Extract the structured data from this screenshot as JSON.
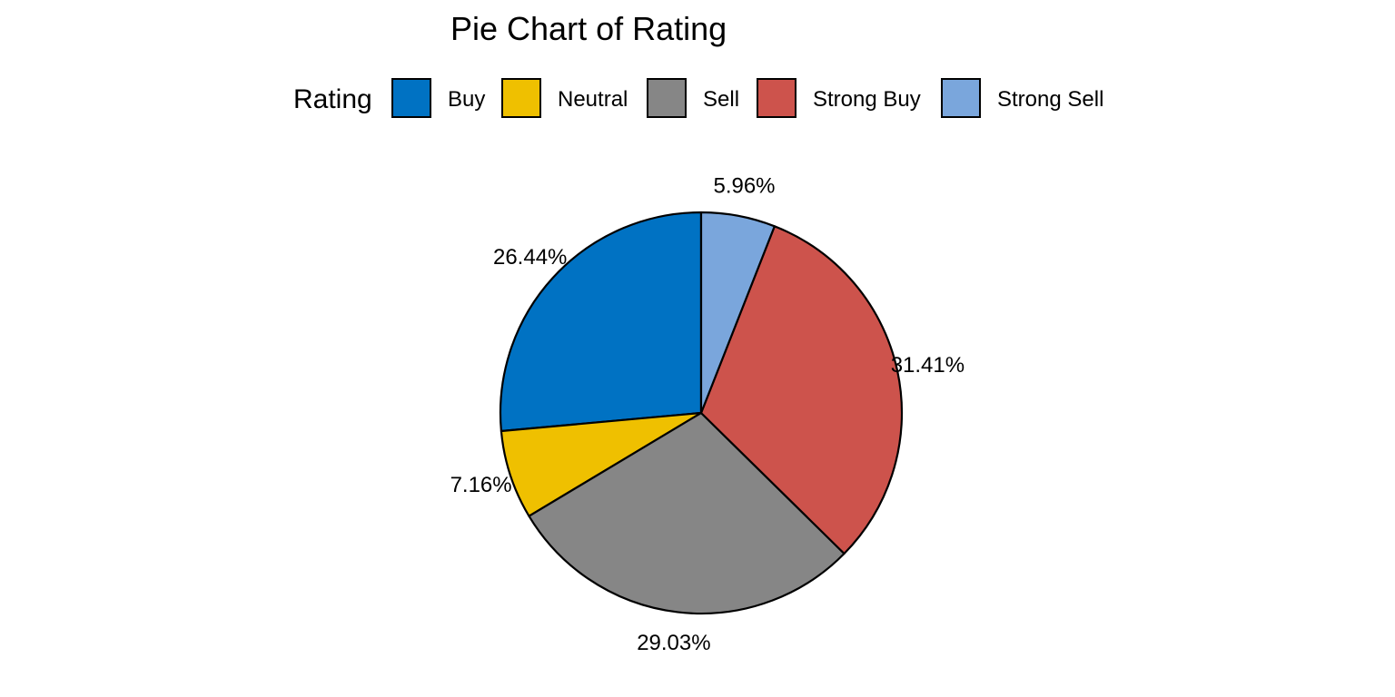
{
  "chart_data": {
    "type": "pie",
    "title": "Pie Chart of Rating",
    "legend": {
      "title": "Rating",
      "position": "top"
    },
    "start_angle_deg": 0,
    "direction": "counter-clockwise",
    "slices": [
      {
        "label": "Buy",
        "value": 26.44,
        "display": "26.44%",
        "color": "#0072C3"
      },
      {
        "label": "Neutral",
        "value": 7.16,
        "display": "7.16%",
        "color": "#EFC000"
      },
      {
        "label": "Sell",
        "value": 29.03,
        "display": "29.03%",
        "color": "#868686"
      },
      {
        "label": "Strong Buy",
        "value": 31.41,
        "display": "31.41%",
        "color": "#CD534C"
      },
      {
        "label": "Strong Sell",
        "value": 5.96,
        "display": "5.96%",
        "color": "#7AA6DC"
      }
    ],
    "slice_border_color": "#000000"
  }
}
